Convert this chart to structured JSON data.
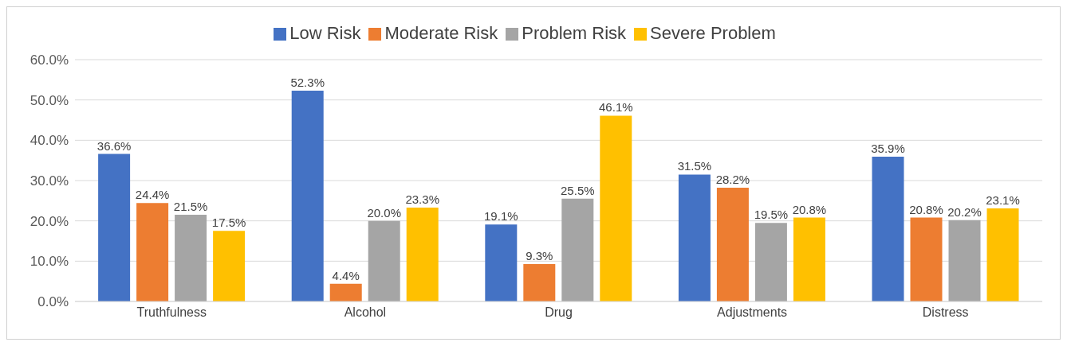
{
  "chart_data": {
    "type": "bar",
    "categories": [
      "Truthfulness",
      "Alcohol",
      "Drug",
      "Adjustments",
      "Distress"
    ],
    "series": [
      {
        "name": "Low Risk",
        "color": "#4472c4",
        "values": [
          36.6,
          52.3,
          19.1,
          31.5,
          35.9
        ],
        "value_labels": [
          "36.6%",
          "52.3%",
          "19.1%",
          "31.5%",
          "35.9%"
        ]
      },
      {
        "name": "Moderate Risk",
        "color": "#ed7d31",
        "values": [
          24.4,
          4.4,
          9.3,
          28.2,
          20.8
        ],
        "value_labels": [
          "24.4%",
          "4.4%",
          "9.3%",
          "28.2%",
          "20.8%"
        ]
      },
      {
        "name": "Problem Risk",
        "color": "#a5a5a5",
        "values": [
          21.5,
          20.0,
          25.5,
          19.5,
          20.2
        ],
        "value_labels": [
          "21.5%",
          "20.0%",
          "25.5%",
          "19.5%",
          "20.2%"
        ]
      },
      {
        "name": "Severe Problem",
        "color": "#ffc000",
        "values": [
          17.5,
          23.3,
          46.1,
          20.8,
          23.1
        ],
        "value_labels": [
          "17.5%",
          "23.3%",
          "46.1%",
          "20.8%",
          "23.1%"
        ]
      }
    ],
    "ylim": [
      0,
      60
    ],
    "yticks": [
      {
        "value": 0,
        "label": "0.0%"
      },
      {
        "value": 10,
        "label": "10.0%"
      },
      {
        "value": 20,
        "label": "20.0%"
      },
      {
        "value": 30,
        "label": "30.0%"
      },
      {
        "value": 40,
        "label": "40.0%"
      },
      {
        "value": 50,
        "label": "50.0%"
      },
      {
        "value": 60,
        "label": "60.0%"
      }
    ],
    "grid": "y",
    "legend": "top"
  }
}
